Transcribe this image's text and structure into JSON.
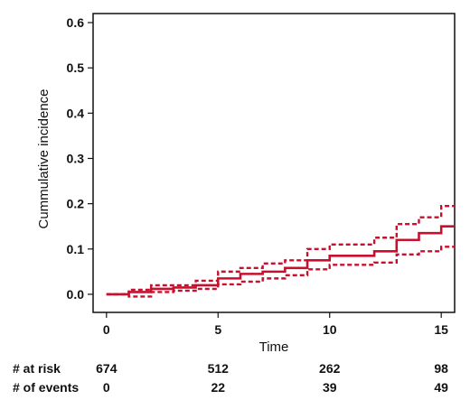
{
  "chart_data": {
    "type": "line",
    "title": "",
    "xlabel": "Time",
    "ylabel": "Cummulative incidence",
    "xlim": [
      -0.6,
      15.6
    ],
    "ylim": [
      -0.04,
      0.62
    ],
    "x_ticks": [
      0,
      5,
      10,
      15
    ],
    "y_ticks": [
      0.0,
      0.1,
      0.2,
      0.3,
      0.4,
      0.5,
      0.6
    ],
    "y_tick_labels": [
      "0.0",
      "0.1",
      "0.2",
      "0.3",
      "0.4",
      "0.5",
      "0.6"
    ],
    "grid": false,
    "color": "#c8102e",
    "series": [
      {
        "style": "solid",
        "x": [
          0,
          1,
          2,
          3,
          4,
          5,
          6,
          7,
          8,
          9,
          10,
          11,
          12,
          13,
          14,
          15,
          15.6
        ],
        "y": [
          0.0,
          0.005,
          0.012,
          0.015,
          0.02,
          0.035,
          0.045,
          0.05,
          0.058,
          0.075,
          0.085,
          0.085,
          0.095,
          0.12,
          0.135,
          0.15,
          0.15
        ]
      },
      {
        "style": "dashed",
        "x": [
          0,
          1,
          2,
          3,
          4,
          5,
          6,
          7,
          8,
          9,
          10,
          11,
          12,
          13,
          14,
          15,
          15.6
        ],
        "y": [
          0.0,
          0.01,
          0.02,
          0.02,
          0.03,
          0.05,
          0.058,
          0.068,
          0.075,
          0.1,
          0.11,
          0.11,
          0.125,
          0.155,
          0.17,
          0.195,
          0.195
        ]
      },
      {
        "style": "dashed",
        "x": [
          0,
          1,
          2,
          3,
          4,
          5,
          6,
          7,
          8,
          9,
          10,
          11,
          12,
          13,
          14,
          15,
          15.6
        ],
        "y": [
          0.0,
          -0.005,
          0.005,
          0.008,
          0.012,
          0.022,
          0.028,
          0.035,
          0.042,
          0.055,
          0.065,
          0.065,
          0.07,
          0.088,
          0.095,
          0.105,
          0.105
        ]
      }
    ]
  },
  "risk_table": {
    "rows": [
      {
        "label": "# at risk",
        "values": [
          "674",
          "512",
          "262",
          "98"
        ]
      },
      {
        "label": "# of events",
        "values": [
          "0",
          "22",
          "39",
          "49"
        ]
      }
    ]
  }
}
